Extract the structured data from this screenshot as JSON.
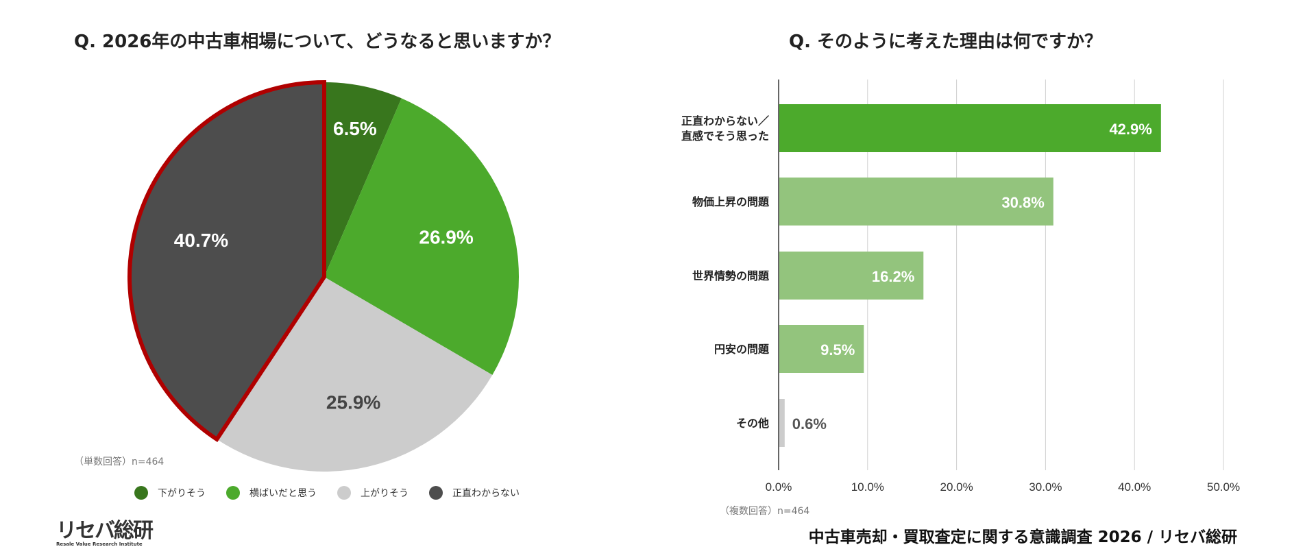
{
  "chart_data": [
    {
      "type": "pie",
      "title": "Q. 2026年の中古車相場について、どうなると思いますか？",
      "note": "（単数回答）n=464",
      "slices": [
        {
          "label": "下がりそう",
          "value": 6.5,
          "display": "6.5%",
          "color": "#38761d"
        },
        {
          "label": "横ばいだと思う",
          "value": 26.9,
          "display": "26.9%",
          "color": "#4caa2c"
        },
        {
          "label": "上がりそう",
          "value": 25.9,
          "display": "25.9%",
          "color": "#cccccc"
        },
        {
          "label": "正直わからない",
          "value": 40.7,
          "display": "40.7%",
          "color": "#4d4d4d",
          "highlight": "#b00000"
        }
      ],
      "legend_placement": "bottom"
    },
    {
      "type": "bar",
      "orientation": "horizontal",
      "title": "Q. そのように考えた理由は何ですか？",
      "note": "（複数回答）n=464",
      "categories": [
        [
          "正直わからない／",
          "直感でそう思った"
        ],
        [
          "物価上昇の問題"
        ],
        [
          "世界情勢の問題"
        ],
        [
          "円安の問題"
        ],
        [
          "その他"
        ]
      ],
      "values": [
        42.9,
        30.8,
        16.2,
        9.5,
        0.6
      ],
      "labels": [
        "42.9%",
        "30.8%",
        "16.2%",
        "9.5%",
        "0.6%"
      ],
      "colors": [
        "#4caa2c",
        "#93c47d",
        "#93c47d",
        "#93c47d",
        "#cccccc"
      ],
      "xlim": [
        0,
        50
      ],
      "ticks": [
        "0.0%",
        "10.0%",
        "20.0%",
        "30.0%",
        "40.0%",
        "50.0%"
      ],
      "grid": true
    }
  ],
  "footer": "中古車売却・買取査定に関する意識調査 2026 / リセバ総研",
  "logo": {
    "main": "リセバ総研",
    "sub": "Resale Value Research Institute"
  }
}
